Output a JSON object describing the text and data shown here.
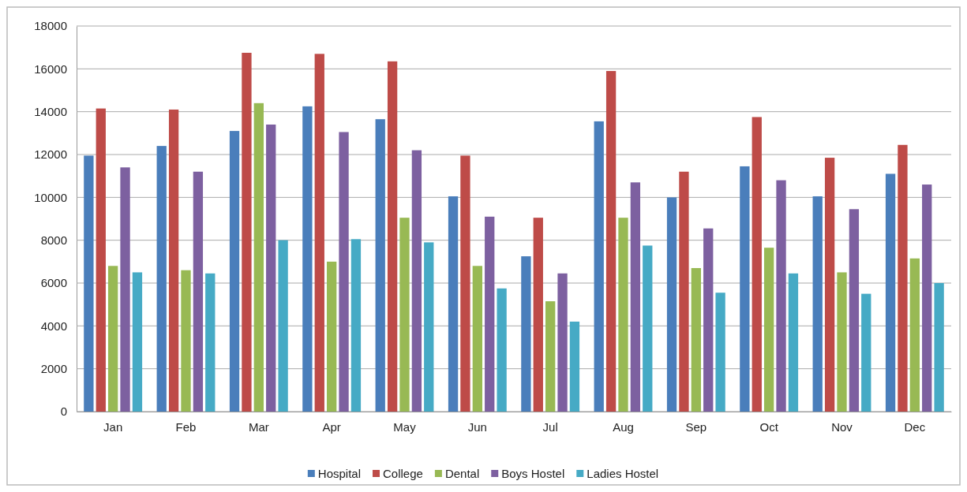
{
  "chart_data": {
    "type": "bar",
    "categories": [
      "Jan",
      "Feb",
      "Mar",
      "Apr",
      "May",
      "Jun",
      "Jul",
      "Aug",
      "Sep",
      "Oct",
      "Nov",
      "Dec"
    ],
    "series": [
      {
        "name": "Hospital",
        "color": "#4a7ebb",
        "values": [
          11950,
          12400,
          13100,
          14250,
          13650,
          10050,
          7250,
          13550,
          10000,
          11450,
          10050,
          11100
        ]
      },
      {
        "name": "College",
        "color": "#be4b48",
        "values": [
          14150,
          14100,
          16750,
          16700,
          16350,
          11950,
          9050,
          15900,
          11200,
          13750,
          11850,
          12450
        ]
      },
      {
        "name": "Dental",
        "color": "#98b954",
        "values": [
          6800,
          6600,
          14400,
          7000,
          9050,
          6800,
          5150,
          9050,
          6700,
          7650,
          6500,
          7150
        ]
      },
      {
        "name": "Boys Hostel",
        "color": "#7d60a0",
        "values": [
          11400,
          11200,
          13400,
          13050,
          12200,
          9100,
          6450,
          10700,
          8550,
          10800,
          9450,
          10600
        ]
      },
      {
        "name": "Ladies Hostel",
        "color": "#46aac5",
        "values": [
          6500,
          6450,
          8000,
          8050,
          7900,
          5750,
          4200,
          7750,
          5550,
          6450,
          5500,
          6000
        ]
      }
    ],
    "ylim": [
      0,
      18000
    ],
    "yticks": [
      0,
      2000,
      4000,
      6000,
      8000,
      10000,
      12000,
      14000,
      16000,
      18000
    ],
    "grid": "y",
    "legend": "bottom"
  }
}
